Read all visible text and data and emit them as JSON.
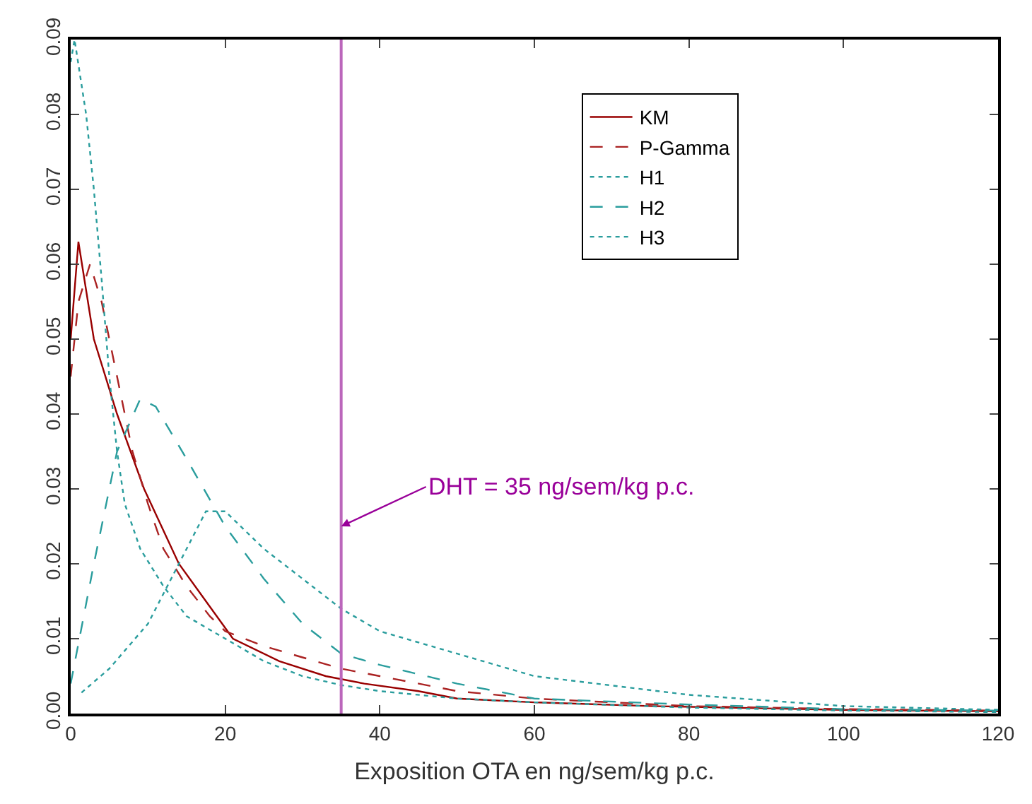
{
  "chart_data": {
    "type": "line",
    "xlabel": "Exposition OTA en ng/sem/kg p.c.",
    "xlim": [
      0,
      120
    ],
    "xticks": [
      0,
      20,
      40,
      60,
      80,
      100,
      120
    ],
    "ylim": [
      0,
      0.09
    ],
    "yticks": [
      {
        "value": 0,
        "label": "0.00"
      },
      0.01,
      0.02,
      0.03,
      0.04,
      0.05,
      0.06,
      0.07,
      0.08,
      0.09
    ],
    "grid": false,
    "legend": "top right",
    "marker": "none",
    "series": [
      {
        "name": "KM",
        "color": "#990000",
        "line_style": "solid",
        "x": [
          0,
          1,
          3,
          6,
          9.5,
          14,
          17.5,
          21,
          27,
          33,
          38,
          45,
          50,
          60,
          75,
          90,
          100,
          120
        ],
        "values": [
          0.05,
          0.063,
          0.05,
          0.04,
          0.03,
          0.02,
          0.015,
          0.01,
          0.007,
          0.005,
          0.004,
          0.003,
          0.002,
          0.0015,
          0.001,
          0.0007,
          0.0005,
          0.0003
        ]
      },
      {
        "name": "P-Gamma",
        "color": "#aa2222",
        "line_style": "dashed",
        "x": [
          0,
          1,
          2.5,
          4,
          6,
          8,
          10,
          12,
          15,
          18,
          20,
          25,
          30,
          35,
          40,
          50,
          60,
          80,
          100,
          120
        ],
        "values": [
          0.045,
          0.055,
          0.06,
          0.055,
          0.045,
          0.035,
          0.028,
          0.022,
          0.017,
          0.013,
          0.011,
          0.009,
          0.0075,
          0.006,
          0.005,
          0.003,
          0.002,
          0.001,
          0.0006,
          0.0004
        ]
      },
      {
        "name": "H1",
        "color": "#2a9d9d",
        "line_style": "dotted",
        "x": [
          1.4,
          5,
          10,
          14,
          17.5,
          20,
          25,
          30,
          35,
          40,
          50,
          60,
          80,
          100,
          120
        ],
        "values": [
          0.0028,
          0.006,
          0.012,
          0.02,
          0.027,
          0.027,
          0.022,
          0.018,
          0.014,
          0.011,
          0.008,
          0.005,
          0.0025,
          0.001,
          0.0005
        ]
      },
      {
        "name": "H2",
        "color": "#2a9d9d",
        "line_style": "dashed",
        "x": [
          0,
          3,
          6,
          9,
          11,
          15,
          20,
          25,
          30,
          35,
          40,
          50,
          60,
          80,
          100,
          120
        ],
        "values": [
          0.004,
          0.02,
          0.035,
          0.042,
          0.041,
          0.034,
          0.025,
          0.018,
          0.012,
          0.008,
          0.0065,
          0.004,
          0.002,
          0.0012,
          0.0006,
          0.0004
        ]
      },
      {
        "name": "H3",
        "color": "#2a9d9d",
        "line_style": "dotted",
        "x": [
          0,
          0.5,
          2,
          3,
          4,
          5,
          6,
          7,
          9,
          12,
          15,
          20,
          25,
          30,
          35,
          40,
          50,
          60,
          80,
          100,
          120
        ],
        "values": [
          0.087,
          0.09,
          0.08,
          0.07,
          0.058,
          0.045,
          0.035,
          0.028,
          0.022,
          0.017,
          0.013,
          0.01,
          0.007,
          0.005,
          0.0038,
          0.003,
          0.002,
          0.0015,
          0.0008,
          0.0004,
          0.0002
        ]
      }
    ],
    "ref_lines": [
      {
        "axis": "x",
        "value": 35,
        "color": "#bb66bb",
        "line_style": "solid"
      }
    ],
    "annotations": [
      {
        "text": "DHT = 35 ng/sem/kg p.c.",
        "x": 35,
        "y": 0.025
      }
    ]
  }
}
